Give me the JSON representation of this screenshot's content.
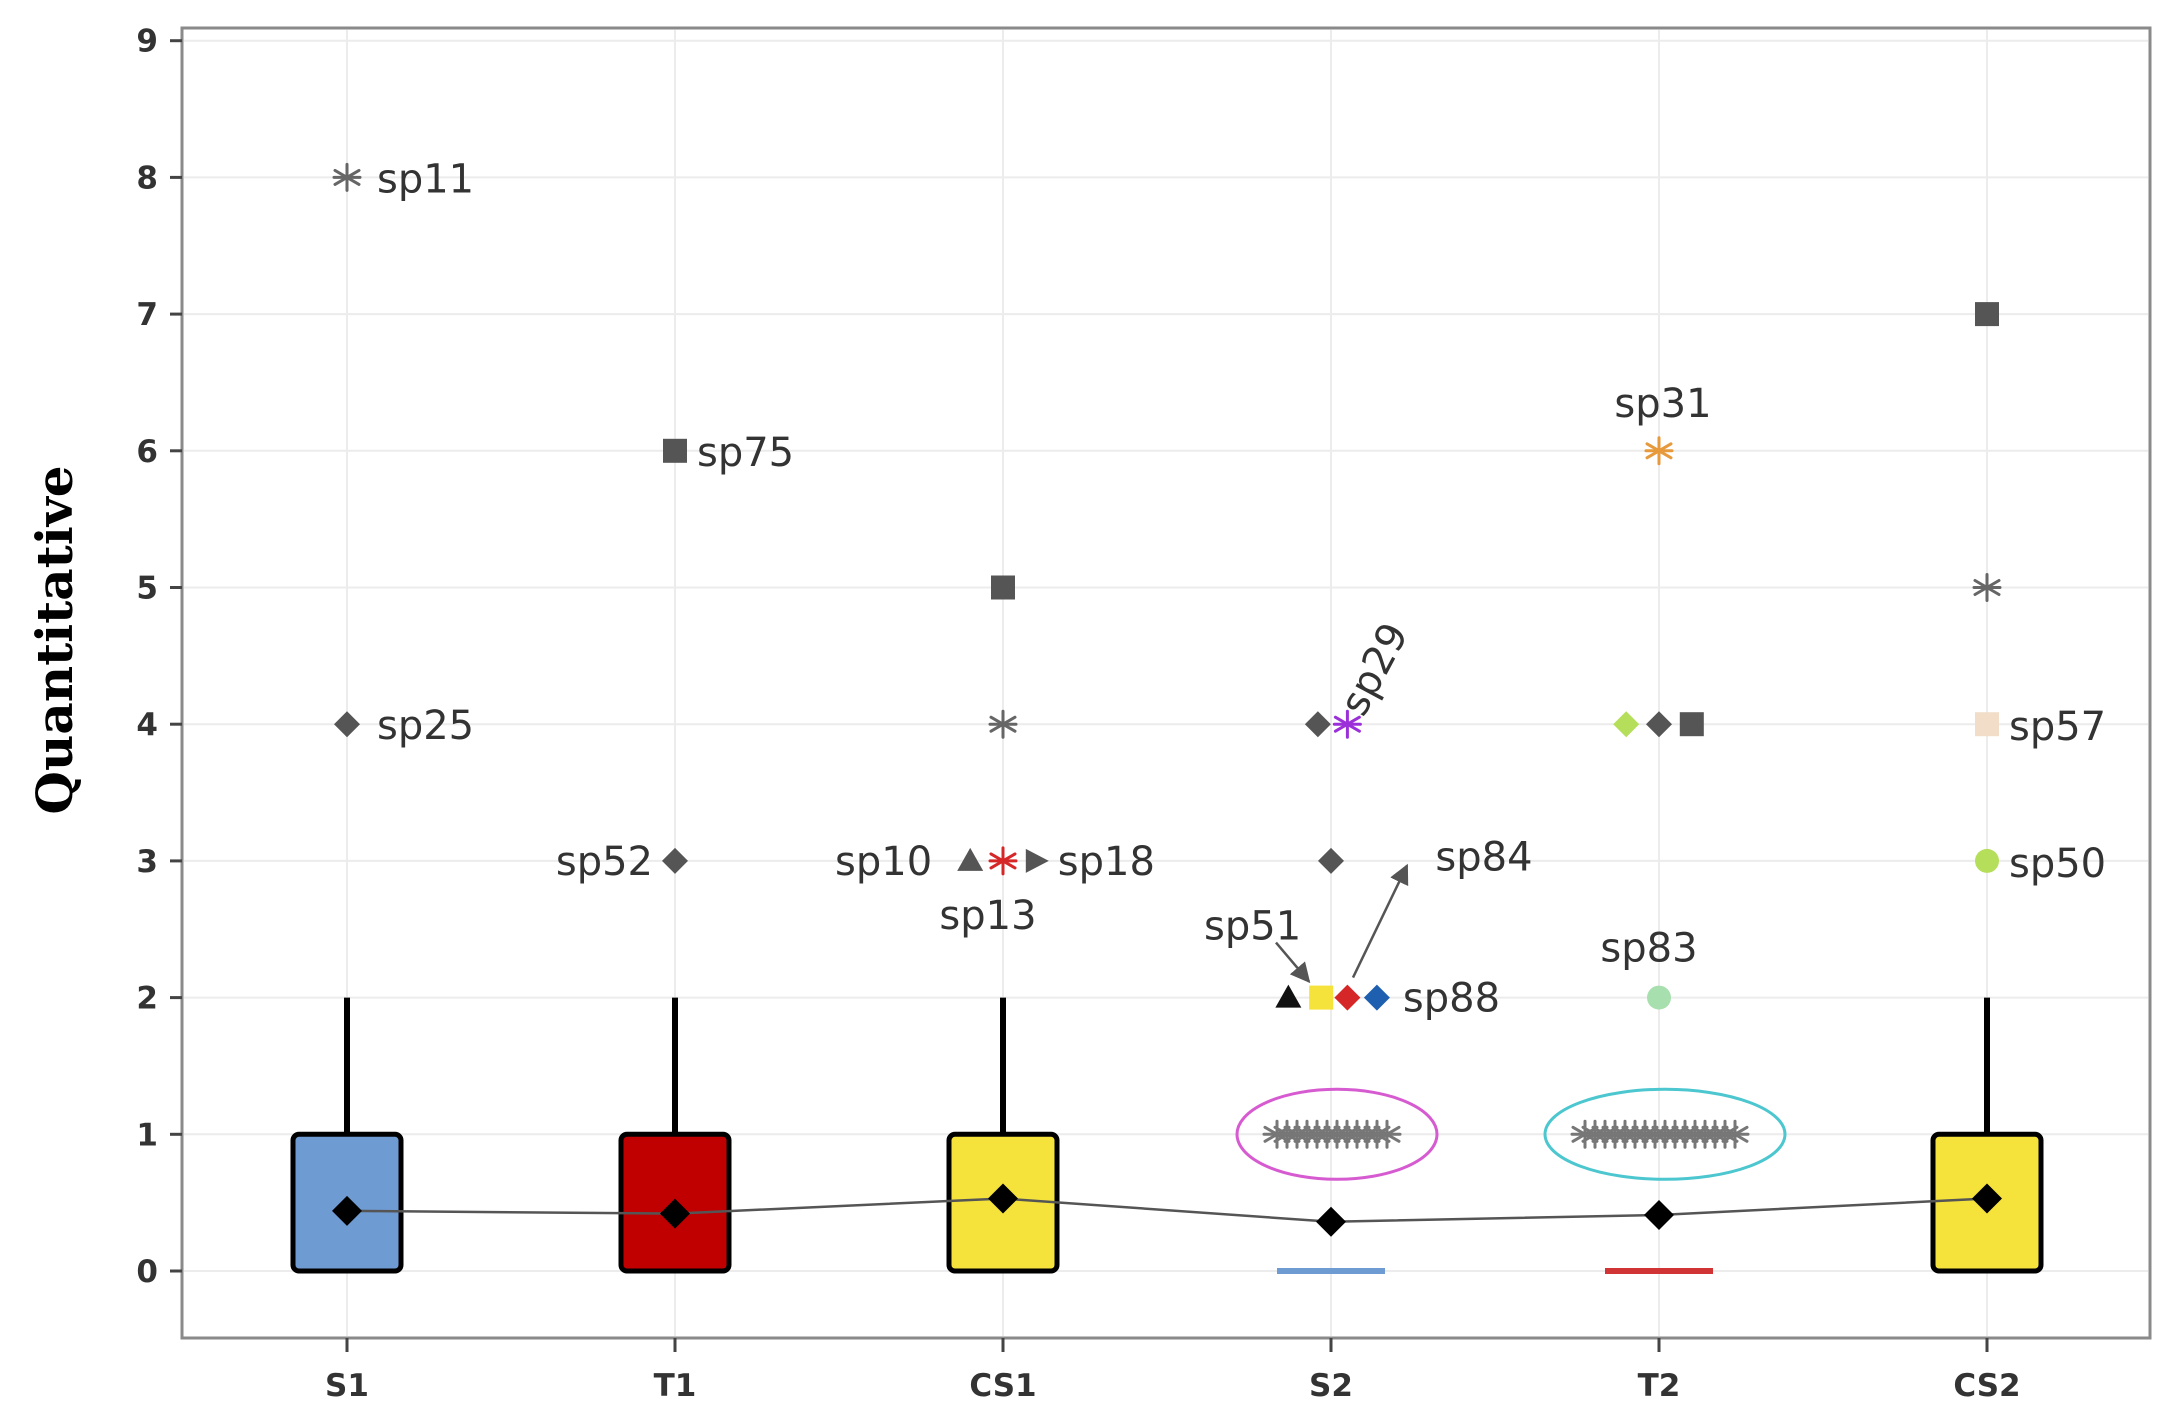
{
  "chart_data": {
    "type": "box",
    "title": "",
    "xlabel": "",
    "ylabel": "Quantitative",
    "ylim": [
      -0.5,
      9.2
    ],
    "yticks": [
      0,
      1,
      2,
      3,
      4,
      5,
      6,
      7,
      8,
      9
    ],
    "grid": true,
    "categories": [
      "S1",
      "T1",
      "CS1",
      "S2",
      "T2",
      "CS2"
    ],
    "colors": {
      "S1": "#6f9bd3",
      "T1": "#c00000",
      "CS1": "#f5e33c",
      "S2": "#6f9bd3",
      "T2": "#d13434",
      "CS2": "#f5e33c"
    },
    "boxes": [
      {
        "group": "S1",
        "q1": 0,
        "median": 0,
        "q3": 1,
        "whisker_low": 0,
        "whisker_high": 2,
        "mean": 0.44
      },
      {
        "group": "T1",
        "q1": 0,
        "median": 0,
        "q3": 1,
        "whisker_low": 0,
        "whisker_high": 2,
        "mean": 0.42
      },
      {
        "group": "CS1",
        "q1": 0,
        "median": 0,
        "q3": 1,
        "whisker_low": 0,
        "whisker_high": 2,
        "mean": 0.53
      },
      {
        "group": "S2",
        "q1": 0,
        "median": 0,
        "q3": 0,
        "whisker_low": 0,
        "whisker_high": 0,
        "mean": 0.36
      },
      {
        "group": "T2",
        "q1": 0,
        "median": 0,
        "q3": 0,
        "whisker_low": 0,
        "whisker_high": 0,
        "mean": 0.41
      },
      {
        "group": "CS2",
        "q1": 0,
        "median": 0,
        "q3": 1,
        "whisker_low": 0,
        "whisker_high": 2,
        "mean": 0.53
      }
    ],
    "outliers": [
      {
        "group": "S1",
        "dx": 0,
        "y": 8,
        "shape": "asterisk",
        "color": "#666666",
        "label": "sp11"
      },
      {
        "group": "S1",
        "dx": 0,
        "y": 4,
        "shape": "diamond",
        "color": "#555555",
        "label": "sp25"
      },
      {
        "group": "T1",
        "dx": 0,
        "y": 6,
        "shape": "square",
        "color": "#555555",
        "label": "sp75"
      },
      {
        "group": "T1",
        "dx": 0,
        "y": 3,
        "shape": "diamond",
        "color": "#555555",
        "label": "sp52"
      },
      {
        "group": "CS1",
        "dx": 0,
        "y": 5,
        "shape": "square",
        "color": "#555555",
        "label": ""
      },
      {
        "group": "CS1",
        "dx": 0,
        "y": 4,
        "shape": "asterisk",
        "color": "#666666",
        "label": ""
      },
      {
        "group": "CS1",
        "dx": -0.1,
        "y": 3,
        "shape": "triangle",
        "color": "#555555",
        "label": "sp10"
      },
      {
        "group": "CS1",
        "dx": 0,
        "y": 3,
        "shape": "asterisk",
        "color": "#d62728",
        "label": "sp13"
      },
      {
        "group": "CS1",
        "dx": 0.1,
        "y": 3,
        "shape": "triangle-right",
        "color": "#555555",
        "label": "sp18"
      },
      {
        "group": "S2",
        "dx": -0.04,
        "y": 4,
        "shape": "diamond",
        "color": "#555555",
        "label": ""
      },
      {
        "group": "S2",
        "dx": 0.05,
        "y": 4,
        "shape": "asterisk",
        "color": "#9b30d9",
        "label": "sp29"
      },
      {
        "group": "S2",
        "dx": 0,
        "y": 3,
        "shape": "diamond",
        "color": "#555555",
        "label": ""
      },
      {
        "group": "S2",
        "dx": -0.13,
        "y": 2,
        "shape": "triangle",
        "color": "#111111",
        "label": ""
      },
      {
        "group": "S2",
        "dx": -0.03,
        "y": 2,
        "shape": "square",
        "color": "#f5e33c",
        "label": "sp51"
      },
      {
        "group": "S2",
        "dx": 0.05,
        "y": 2,
        "shape": "diamond",
        "color": "#d62728",
        "label": "sp84"
      },
      {
        "group": "S2",
        "dx": 0.14,
        "y": 2,
        "shape": "diamond",
        "color": "#1f5fb0",
        "label": "sp88"
      },
      {
        "group": "T2",
        "dx": 0,
        "y": 6,
        "shape": "asterisk",
        "color": "#e69a3c",
        "label": "sp31"
      },
      {
        "group": "T2",
        "dx": -0.1,
        "y": 4,
        "shape": "diamond",
        "color": "#b5de5a",
        "label": ""
      },
      {
        "group": "T2",
        "dx": 0,
        "y": 4,
        "shape": "diamond",
        "color": "#555555",
        "label": ""
      },
      {
        "group": "T2",
        "dx": 0.1,
        "y": 4,
        "shape": "square",
        "color": "#555555",
        "label": ""
      },
      {
        "group": "T2",
        "dx": 0,
        "y": 2,
        "shape": "circle",
        "color": "#a8dfae",
        "label": "sp83"
      },
      {
        "group": "CS2",
        "dx": 0,
        "y": 7,
        "shape": "square",
        "color": "#555555",
        "label": ""
      },
      {
        "group": "CS2",
        "dx": 0,
        "y": 5,
        "shape": "asterisk",
        "color": "#666666",
        "label": ""
      },
      {
        "group": "CS2",
        "dx": 0,
        "y": 4,
        "shape": "square",
        "color": "#f2ddc8",
        "label": "sp57"
      },
      {
        "group": "CS2",
        "dx": 0,
        "y": 3,
        "shape": "circle",
        "color": "#b5de5a",
        "label": "sp50"
      }
    ],
    "clusters": [
      {
        "group": "S2",
        "y": 1,
        "count": 12,
        "ellipse_color": "#d65bd1"
      },
      {
        "group": "T2",
        "y": 1,
        "count": 16,
        "ellipse_color": "#4cc6cf"
      }
    ],
    "mean_line_color": "#555555"
  }
}
